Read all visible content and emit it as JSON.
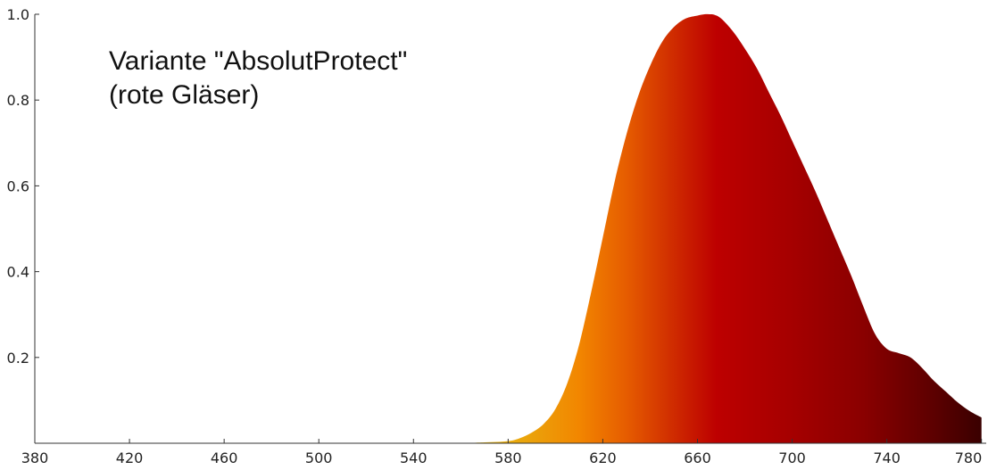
{
  "chart_data": {
    "type": "area",
    "annotation": [
      "Variante \"AbsolutProtect\"",
      "(rote Gläser)"
    ],
    "xlabel": "",
    "ylabel": "",
    "xlim": [
      380,
      782
    ],
    "ylim": [
      0,
      1.0
    ],
    "x_ticks": [
      380,
      420,
      460,
      500,
      540,
      580,
      620,
      660,
      700,
      740,
      780
    ],
    "y_ticks": [
      0.2,
      0.4,
      0.6,
      0.8,
      1.0
    ],
    "y_tick_labels": [
      "0.2",
      "0.4",
      "0.6",
      "0.8",
      "1.0"
    ],
    "grid": false,
    "fill": "wavelength-spectrum-gradient",
    "series": [
      {
        "x": [
          560,
          570,
          580,
          585,
          590,
          595,
          600,
          605,
          610,
          615,
          620,
          625,
          630,
          635,
          640,
          645,
          650,
          655,
          660,
          663,
          665,
          667,
          670,
          675,
          680,
          685,
          690,
          695,
          700,
          705,
          710,
          715,
          720,
          725,
          730,
          735,
          740,
          745,
          750,
          755,
          760,
          765,
          770,
          775,
          780
        ],
        "y": [
          0.0,
          0.002,
          0.005,
          0.012,
          0.025,
          0.045,
          0.08,
          0.14,
          0.23,
          0.35,
          0.48,
          0.61,
          0.72,
          0.81,
          0.88,
          0.935,
          0.97,
          0.99,
          0.997,
          1.0,
          1.0,
          0.999,
          0.99,
          0.96,
          0.92,
          0.875,
          0.82,
          0.765,
          0.705,
          0.645,
          0.585,
          0.52,
          0.455,
          0.39,
          0.32,
          0.255,
          0.22,
          0.21,
          0.2,
          0.175,
          0.145,
          0.12,
          0.095,
          0.075,
          0.06
        ]
      }
    ],
    "gradient_stops": [
      {
        "x": 560,
        "color": "#e7c61a"
      },
      {
        "x": 590,
        "color": "#eba10a"
      },
      {
        "x": 610,
        "color": "#f28600"
      },
      {
        "x": 630,
        "color": "#e65c00"
      },
      {
        "x": 650,
        "color": "#cf2b00"
      },
      {
        "x": 668,
        "color": "#bd0000"
      },
      {
        "x": 700,
        "color": "#a50000"
      },
      {
        "x": 730,
        "color": "#8a0000"
      },
      {
        "x": 760,
        "color": "#5c0000"
      },
      {
        "x": 780,
        "color": "#3a0000"
      }
    ],
    "axis_color": "#333333"
  }
}
